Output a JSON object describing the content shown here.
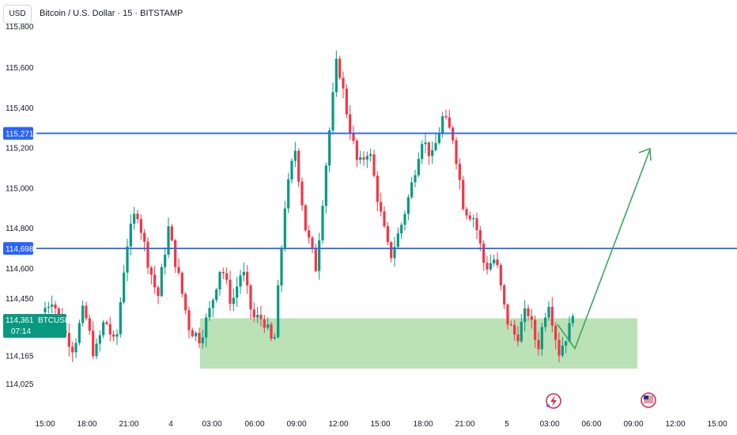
{
  "header": {
    "currency": "USD",
    "symbol_title": "Bitcoin / U.S. Dollar · 15 · BITSTAMP"
  },
  "price_axis": {
    "tick_labels": [
      "115,600",
      "115,400",
      "115,200",
      "115,000",
      "114,800",
      "114,600",
      "114,450",
      "114,165",
      "114,025"
    ],
    "top_partial_label": "115,800"
  },
  "time_axis": {
    "tick_labels": [
      "15:00",
      "18:00",
      "21:00",
      "4",
      "03:00",
      "06:00",
      "09:00",
      "12:00",
      "15:00",
      "18:00",
      "21:00",
      "5",
      "03:00",
      "06:00",
      "09:00",
      "12:00",
      "15:00"
    ]
  },
  "levels": {
    "resistance_label": "115,271",
    "support_label": "114,698",
    "line_color": "#2962ff"
  },
  "current_price": {
    "price": "114,361",
    "symbol": "BTCUSD",
    "countdown": "07:14",
    "color": "#089981"
  },
  "zone": {
    "price_low": 114100,
    "price_high": 114350,
    "color": "#b7dfb3"
  },
  "projection": {
    "color": "#3ba55c"
  },
  "event_markers": [
    {
      "icon": "flash-event-icon",
      "color": "#d32f4a"
    },
    {
      "icon": "us-flag-icon",
      "color": "#d32f4a"
    }
  ],
  "chart_data": {
    "type": "candlestick",
    "title": "Bitcoin / U.S. Dollar · 15 · BITSTAMP",
    "xlabel": "",
    "ylabel": "",
    "ylim": [
      113950,
      115850
    ],
    "up_color": "#089981",
    "down_color": "#f23645",
    "levels": [
      115271,
      114698
    ],
    "keypoints": [
      [
        "15:00",
        114380
      ],
      [
        "16:00",
        114450
      ],
      [
        "16:30",
        114300
      ],
      [
        "17:00",
        114200
      ],
      [
        "18:00",
        114400
      ],
      [
        "18:45",
        114160
      ],
      [
        "19:30",
        114350
      ],
      [
        "20:15",
        114200
      ],
      [
        "21:00",
        114700
      ],
      [
        "21:45",
        114900
      ],
      [
        "22:30",
        114650
      ],
      [
        "23:15",
        114450
      ],
      [
        "00:00",
        114800
      ],
      [
        "00:45",
        114550
      ],
      [
        "01:30",
        114300
      ],
      [
        "02:30",
        114250
      ],
      [
        "03:30",
        114400
      ],
      [
        "04:30",
        114620
      ],
      [
        "05:30",
        114420
      ],
      [
        "06:30",
        114600
      ],
      [
        "07:30",
        114350
      ],
      [
        "08:30",
        114350
      ],
      [
        "09:00",
        114200
      ],
      [
        "09:45",
        114900
      ],
      [
        "10:00",
        115200
      ],
      [
        "10:30",
        114800
      ],
      [
        "11:15",
        114600
      ],
      [
        "12:00",
        115150
      ],
      [
        "12:45",
        115650
      ],
      [
        "13:15",
        115350
      ],
      [
        "14:00",
        115100
      ],
      [
        "14:30",
        115200
      ],
      [
        "15:00",
        114900
      ],
      [
        "15:45",
        114650
      ],
      [
        "16:30",
        114800
      ],
      [
        "17:15",
        115000
      ],
      [
        "18:00",
        115250
      ],
      [
        "18:30",
        115150
      ],
      [
        "19:15",
        115350
      ],
      [
        "19:45",
        115250
      ],
      [
        "20:30",
        114900
      ],
      [
        "21:15",
        114850
      ],
      [
        "21:45",
        114600
      ],
      [
        "22:30",
        114650
      ],
      [
        "23:00",
        114350
      ],
      [
        "00:00",
        114250
      ],
      [
        "00:45",
        114400
      ],
      [
        "01:30",
        114200
      ],
      [
        "02:00",
        114450
      ],
      [
        "02:30",
        114180
      ],
      [
        "03:00",
        114300
      ]
    ],
    "zone": {
      "from": "02:30 (4)",
      "to": "09:00 (5)",
      "low": 114100,
      "high": 114350
    },
    "projection_path": [
      [
        "03:00",
        114320
      ],
      [
        "04:30",
        114200
      ],
      [
        "09:30",
        115250
      ]
    ]
  }
}
